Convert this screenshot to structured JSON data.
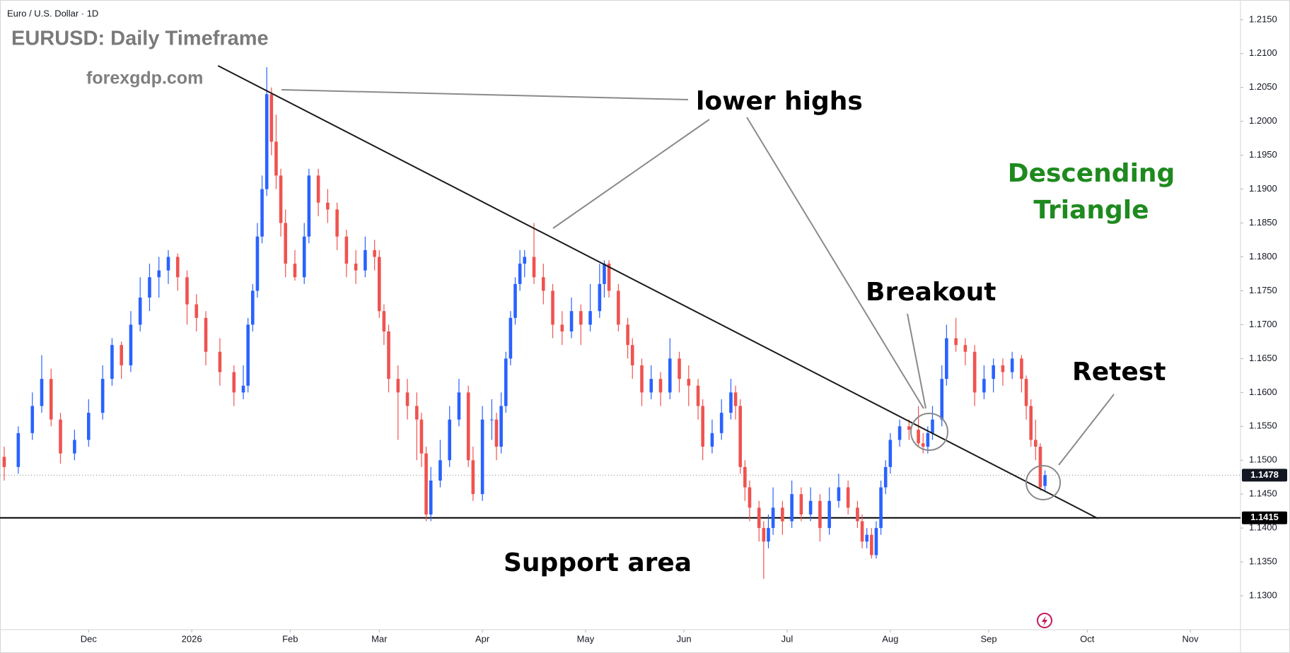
{
  "chart_data": {
    "type": "candlestick",
    "header": "Euro / U.S. Dollar · 1D",
    "title": "EURUSD: Daily Timeframe",
    "subtitle": "forexgdp.com",
    "annotations": [
      "lower highs",
      "Breakout",
      "Retest",
      "Support area"
    ],
    "pattern_label": [
      "Descending",
      "Triangle"
    ],
    "up_color": "#2962ff",
    "down_color": "#ef5350",
    "xlim": [
      -0.9,
      263.7
    ],
    "ylim": [
      1.125,
      1.2179
    ],
    "xticks": [
      {
        "value": 18,
        "label": "Dec"
      },
      {
        "value": 40,
        "label": "2026"
      },
      {
        "value": 61,
        "label": "Feb"
      },
      {
        "value": 80,
        "label": "Mar"
      },
      {
        "value": 102,
        "label": "Apr"
      },
      {
        "value": 124,
        "label": "May"
      },
      {
        "value": 145,
        "label": "Jun"
      },
      {
        "value": 167,
        "label": "Jul"
      },
      {
        "value": 189,
        "label": "Aug"
      },
      {
        "value": 210,
        "label": "Sep"
      },
      {
        "value": 231,
        "label": "Oct"
      },
      {
        "value": 253,
        "label": "Nov"
      }
    ],
    "yticks": [
      {
        "value": 1.13,
        "label": "1.1300"
      },
      {
        "value": 1.135,
        "label": "1.1350"
      },
      {
        "value": 1.14,
        "label": "1.1400"
      },
      {
        "value": 1.145,
        "label": "1.1450"
      },
      {
        "value": 1.15,
        "label": "1.1500"
      },
      {
        "value": 1.155,
        "label": "1.1550"
      },
      {
        "value": 1.16,
        "label": "1.1600"
      },
      {
        "value": 1.165,
        "label": "1.1650"
      },
      {
        "value": 1.17,
        "label": "1.1700"
      },
      {
        "value": 1.175,
        "label": "1.1750"
      },
      {
        "value": 1.18,
        "label": "1.1800"
      },
      {
        "value": 1.185,
        "label": "1.1850"
      },
      {
        "value": 1.19,
        "label": "1.1900"
      },
      {
        "value": 1.195,
        "label": "1.1950"
      },
      {
        "value": 1.2,
        "label": "1.2000"
      },
      {
        "value": 1.205,
        "label": "1.2050"
      },
      {
        "value": 1.21,
        "label": "1.2100"
      },
      {
        "value": 1.215,
        "label": "1.2150"
      }
    ],
    "last_price": 1.1478,
    "support": 1.1415,
    "trendline": {
      "x": [
        45.6,
        233.3
      ],
      "y": [
        1.2082,
        1.1414
      ]
    },
    "ohlc": [
      [
        0,
        1.1505,
        1.152,
        1.147,
        1.149
      ],
      [
        3,
        1.149,
        1.155,
        1.148,
        1.154
      ],
      [
        6,
        1.154,
        1.16,
        1.153,
        1.158
      ],
      [
        8,
        1.158,
        1.1655,
        1.157,
        1.162
      ],
      [
        10,
        1.162,
        1.1635,
        1.155,
        1.156
      ],
      [
        12,
        1.156,
        1.157,
        1.1495,
        1.151
      ],
      [
        15,
        1.151,
        1.1545,
        1.15,
        1.153
      ],
      [
        18,
        1.153,
        1.159,
        1.152,
        1.157
      ],
      [
        21,
        1.157,
        1.164,
        1.156,
        1.162
      ],
      [
        23,
        1.162,
        1.168,
        1.161,
        1.167
      ],
      [
        25,
        1.167,
        1.1675,
        1.162,
        1.164
      ],
      [
        27,
        1.164,
        1.172,
        1.163,
        1.17
      ],
      [
        29,
        1.17,
        1.177,
        1.169,
        1.174
      ],
      [
        31,
        1.174,
        1.179,
        1.172,
        1.177
      ],
      [
        33,
        1.177,
        1.18,
        1.174,
        1.178
      ],
      [
        35,
        1.178,
        1.181,
        1.176,
        1.18
      ],
      [
        37,
        1.18,
        1.1805,
        1.175,
        1.177
      ],
      [
        39,
        1.177,
        1.178,
        1.17,
        1.173
      ],
      [
        41,
        1.173,
        1.1745,
        1.169,
        1.171
      ],
      [
        43,
        1.171,
        1.172,
        1.164,
        1.166
      ],
      [
        46,
        1.166,
        1.168,
        1.161,
        1.163
      ],
      [
        49,
        1.163,
        1.164,
        1.158,
        1.16
      ],
      [
        51,
        1.16,
        1.164,
        1.159,
        1.161
      ],
      [
        52,
        1.161,
        1.171,
        1.16,
        1.17
      ],
      [
        53,
        1.17,
        1.176,
        1.169,
        1.175
      ],
      [
        54,
        1.175,
        1.185,
        1.174,
        1.183
      ],
      [
        55,
        1.183,
        1.192,
        1.182,
        1.19
      ],
      [
        56,
        1.19,
        1.208,
        1.189,
        1.204
      ],
      [
        57,
        1.204,
        1.205,
        1.195,
        1.197
      ],
      [
        58,
        1.197,
        1.201,
        1.19,
        1.192
      ],
      [
        59,
        1.192,
        1.193,
        1.183,
        1.185
      ],
      [
        60,
        1.185,
        1.187,
        1.177,
        1.179
      ],
      [
        62,
        1.179,
        1.181,
        1.1765,
        1.177
      ],
      [
        64,
        1.177,
        1.185,
        1.176,
        1.183
      ],
      [
        65,
        1.183,
        1.193,
        1.182,
        1.192
      ],
      [
        67,
        1.192,
        1.193,
        1.186,
        1.188
      ],
      [
        69,
        1.188,
        1.19,
        1.185,
        1.187
      ],
      [
        71,
        1.187,
        1.188,
        1.181,
        1.183
      ],
      [
        73,
        1.183,
        1.184,
        1.177,
        1.179
      ],
      [
        75,
        1.179,
        1.181,
        1.176,
        1.178
      ],
      [
        77,
        1.178,
        1.183,
        1.177,
        1.181
      ],
      [
        79,
        1.181,
        1.1825,
        1.178,
        1.18
      ],
      [
        80,
        1.18,
        1.181,
        1.171,
        1.172
      ],
      [
        81,
        1.172,
        1.173,
        1.167,
        1.169
      ],
      [
        82,
        1.169,
        1.17,
        1.16,
        1.162
      ],
      [
        84,
        1.162,
        1.164,
        1.153,
        1.16
      ],
      [
        86,
        1.16,
        1.162,
        1.156,
        1.158
      ],
      [
        88,
        1.158,
        1.16,
        1.15,
        1.156
      ],
      [
        89,
        1.156,
        1.157,
        1.149,
        1.151
      ],
      [
        90,
        1.151,
        1.152,
        1.141,
        1.142
      ],
      [
        91,
        1.142,
        1.149,
        1.141,
        1.147
      ],
      [
        93,
        1.147,
        1.153,
        1.146,
        1.15
      ],
      [
        95,
        1.15,
        1.158,
        1.149,
        1.156
      ],
      [
        97,
        1.156,
        1.162,
        1.155,
        1.16
      ],
      [
        99,
        1.16,
        1.161,
        1.149,
        1.15
      ],
      [
        100,
        1.15,
        1.152,
        1.144,
        1.145
      ],
      [
        102,
        1.145,
        1.158,
        1.144,
        1.156
      ],
      [
        104,
        1.156,
        1.159,
        1.153,
        1.156
      ],
      [
        105,
        1.156,
        1.157,
        1.15,
        1.152
      ],
      [
        106,
        1.152,
        1.16,
        1.151,
        1.158
      ],
      [
        107,
        1.158,
        1.166,
        1.157,
        1.165
      ],
      [
        108,
        1.165,
        1.172,
        1.164,
        1.171
      ],
      [
        109,
        1.171,
        1.177,
        1.17,
        1.176
      ],
      [
        110,
        1.176,
        1.181,
        1.175,
        1.179
      ],
      [
        111,
        1.179,
        1.181,
        1.177,
        1.18
      ],
      [
        113,
        1.18,
        1.185,
        1.176,
        1.177
      ],
      [
        115,
        1.177,
        1.179,
        1.173,
        1.175
      ],
      [
        117,
        1.175,
        1.176,
        1.168,
        1.17
      ],
      [
        119,
        1.17,
        1.172,
        1.167,
        1.169
      ],
      [
        121,
        1.169,
        1.174,
        1.168,
        1.172
      ],
      [
        123,
        1.172,
        1.173,
        1.167,
        1.17
      ],
      [
        125,
        1.17,
        1.176,
        1.169,
        1.172
      ],
      [
        127,
        1.172,
        1.179,
        1.171,
        1.176
      ],
      [
        128,
        1.176,
        1.1795,
        1.174,
        1.179
      ],
      [
        129,
        1.179,
        1.1795,
        1.174,
        1.175
      ],
      [
        131,
        1.175,
        1.176,
        1.169,
        1.17
      ],
      [
        133,
        1.17,
        1.171,
        1.165,
        1.167
      ],
      [
        134,
        1.167,
        1.168,
        1.162,
        1.164
      ],
      [
        136,
        1.164,
        1.165,
        1.158,
        1.16
      ],
      [
        138,
        1.16,
        1.164,
        1.159,
        1.162
      ],
      [
        140,
        1.162,
        1.163,
        1.158,
        1.16
      ],
      [
        142,
        1.16,
        1.168,
        1.159,
        1.165
      ],
      [
        144,
        1.165,
        1.166,
        1.16,
        1.162
      ],
      [
        146,
        1.162,
        1.164,
        1.158,
        1.161
      ],
      [
        148,
        1.161,
        1.162,
        1.156,
        1.158
      ],
      [
        149,
        1.158,
        1.159,
        1.15,
        1.152
      ],
      [
        151,
        1.152,
        1.156,
        1.151,
        1.154
      ],
      [
        153,
        1.154,
        1.159,
        1.153,
        1.157
      ],
      [
        155,
        1.157,
        1.162,
        1.156,
        1.16
      ],
      [
        156,
        1.16,
        1.161,
        1.156,
        1.158
      ],
      [
        157,
        1.158,
        1.159,
        1.148,
        1.149
      ],
      [
        158,
        1.149,
        1.15,
        1.144,
        1.146
      ],
      [
        159,
        1.146,
        1.147,
        1.141,
        1.143
      ],
      [
        161,
        1.143,
        1.144,
        1.138,
        1.14
      ],
      [
        162,
        1.14,
        1.141,
        1.1325,
        1.138
      ],
      [
        163,
        1.138,
        1.142,
        1.137,
        1.14
      ],
      [
        164,
        1.14,
        1.146,
        1.139,
        1.143
      ],
      [
        166,
        1.143,
        1.144,
        1.139,
        1.141
      ],
      [
        168,
        1.141,
        1.147,
        1.14,
        1.145
      ],
      [
        170,
        1.145,
        1.146,
        1.141,
        1.142
      ],
      [
        172,
        1.142,
        1.146,
        1.141,
        1.144
      ],
      [
        174,
        1.144,
        1.145,
        1.138,
        1.14
      ],
      [
        176,
        1.14,
        1.146,
        1.139,
        1.144
      ],
      [
        178,
        1.144,
        1.148,
        1.143,
        1.146
      ],
      [
        180,
        1.146,
        1.147,
        1.142,
        1.143
      ],
      [
        182,
        1.143,
        1.144,
        1.14,
        1.141
      ],
      [
        183,
        1.141,
        1.142,
        1.137,
        1.138
      ],
      [
        184,
        1.138,
        1.14,
        1.137,
        1.139
      ],
      [
        185,
        1.139,
        1.14,
        1.1355,
        1.136
      ],
      [
        186,
        1.136,
        1.141,
        1.1355,
        1.14
      ],
      [
        187,
        1.14,
        1.147,
        1.139,
        1.146
      ],
      [
        188,
        1.146,
        1.15,
        1.145,
        1.149
      ],
      [
        189,
        1.149,
        1.154,
        1.148,
        1.153
      ],
      [
        191,
        1.153,
        1.156,
        1.152,
        1.155
      ],
      [
        193,
        1.155,
        1.156,
        1.153,
        1.1545
      ],
      [
        195,
        1.1545,
        1.158,
        1.152,
        1.1525
      ],
      [
        196,
        1.1525,
        1.154,
        1.151,
        1.152
      ],
      [
        197,
        1.152,
        1.155,
        1.151,
        1.154
      ],
      [
        198,
        1.154,
        1.158,
        1.153,
        1.156
      ],
      [
        200,
        1.156,
        1.164,
        1.155,
        1.162
      ],
      [
        201,
        1.162,
        1.17,
        1.161,
        1.168
      ],
      [
        203,
        1.168,
        1.171,
        1.166,
        1.167
      ],
      [
        205,
        1.167,
        1.168,
        1.164,
        1.166
      ],
      [
        207,
        1.166,
        1.167,
        1.158,
        1.16
      ],
      [
        209,
        1.16,
        1.164,
        1.159,
        1.162
      ],
      [
        211,
        1.162,
        1.165,
        1.16,
        1.164
      ],
      [
        213,
        1.164,
        1.165,
        1.161,
        1.163
      ],
      [
        215,
        1.163,
        1.166,
        1.162,
        1.165
      ],
      [
        217,
        1.165,
        1.1655,
        1.16,
        1.162
      ],
      [
        218,
        1.162,
        1.1625,
        1.156,
        1.158
      ],
      [
        219,
        1.158,
        1.159,
        1.152,
        1.153
      ],
      [
        220,
        1.153,
        1.156,
        1.15,
        1.152
      ],
      [
        221,
        1.152,
        1.1525,
        1.1455,
        1.146
      ],
      [
        222,
        1.1462,
        1.1485,
        1.1455,
        1.1478
      ]
    ]
  }
}
